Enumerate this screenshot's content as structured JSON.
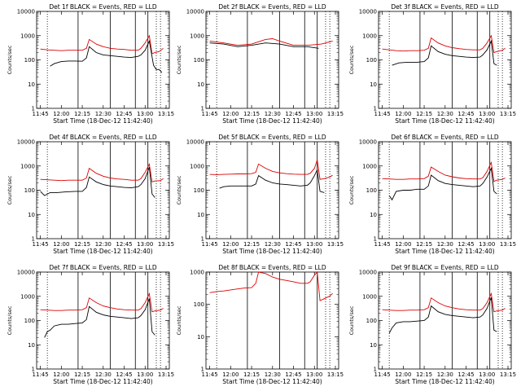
{
  "chart_data": [
    {
      "type": "line",
      "title": "Det 1f BLACK = Events, RED = LLD",
      "xlabel": "Start Time (18-Dec-12 11:42:40)",
      "ylabel": "Counts/sec",
      "ylog": true,
      "ylim": [
        1,
        10000
      ],
      "yticks": [
        "1",
        "10",
        "100",
        "1000",
        "10000"
      ],
      "xticks": [
        "11:45",
        "12:00",
        "12:15",
        "12:30",
        "12:45",
        "13:00",
        "13:15"
      ],
      "xlim_min": [
        -2.67,
        92.33
      ],
      "series": [
        {
          "name": "Events",
          "color": "#000000",
          "x": [
            7,
            10,
            15,
            20,
            25,
            30,
            33,
            35,
            40,
            45,
            50,
            55,
            60,
            65,
            70,
            72,
            75,
            78,
            81,
            83,
            85,
            87
          ],
          "y": [
            55,
            70,
            85,
            90,
            90,
            88,
            120,
            350,
            200,
            160,
            150,
            140,
            130,
            125,
            140,
            160,
            250,
            600,
            60,
            40,
            40,
            30
          ]
        },
        {
          "name": "LLD",
          "color": "#dd0000",
          "x": [
            0,
            5,
            10,
            15,
            20,
            25,
            30,
            33,
            35,
            40,
            45,
            50,
            55,
            60,
            65,
            70,
            72,
            75,
            78,
            80,
            82,
            85,
            88
          ],
          "y": [
            280,
            260,
            250,
            240,
            250,
            250,
            250,
            300,
            700,
            450,
            350,
            300,
            280,
            270,
            250,
            250,
            300,
            500,
            1000,
            180,
            200,
            220,
            300
          ]
        }
      ]
    },
    {
      "type": "line",
      "title": "Det 2f BLACK = Events, RED = LLD",
      "xlabel": "Start Time (18-Dec-12 11:42:40)",
      "ylabel": "Counts/sec",
      "ylog": true,
      "ylim": [
        1,
        10000
      ],
      "yticks": [
        "1",
        "10",
        "100",
        "1000",
        "10000"
      ],
      "xticks": [
        "11:45",
        "12:00",
        "12:15",
        "12:30",
        "12:45",
        "13:00",
        "13:15"
      ],
      "xlim_min": [
        -2.67,
        92.33
      ],
      "series": [
        {
          "name": "Events",
          "color": "#000000",
          "x": [
            0,
            10,
            20,
            30,
            40,
            50,
            60,
            70,
            78
          ],
          "y": [
            500,
            450,
            350,
            400,
            500,
            450,
            350,
            350,
            300
          ]
        },
        {
          "name": "LLD",
          "color": "#dd0000",
          "x": [
            0,
            10,
            20,
            30,
            40,
            45,
            50,
            60,
            70,
            80,
            88
          ],
          "y": [
            600,
            500,
            400,
            450,
            700,
            750,
            600,
            400,
            400,
            450,
            600
          ]
        }
      ]
    },
    {
      "type": "line",
      "title": "Det 3f BLACK = Events, RED = LLD",
      "xlabel": "Start Time (18-Dec-12 11:42:40)",
      "ylabel": "Counts/sec",
      "ylog": true,
      "ylim": [
        1,
        10000
      ],
      "yticks": [
        "1",
        "10",
        "100",
        "1000",
        "10000"
      ],
      "xticks": [
        "11:45",
        "12:00",
        "12:15",
        "12:30",
        "12:45",
        "13:00",
        "13:15"
      ],
      "xlim_min": [
        -2.67,
        92.33
      ],
      "series": [
        {
          "name": "Events",
          "color": "#000000",
          "x": [
            7,
            12,
            18,
            25,
            30,
            33,
            35,
            40,
            45,
            50,
            55,
            60,
            65,
            70,
            72,
            75,
            78,
            80,
            82
          ],
          "y": [
            60,
            75,
            80,
            80,
            85,
            120,
            380,
            220,
            170,
            150,
            140,
            130,
            125,
            130,
            160,
            260,
            600,
            70,
            60
          ]
        },
        {
          "name": "LLD",
          "color": "#dd0000",
          "x": [
            0,
            5,
            10,
            15,
            20,
            25,
            30,
            33,
            35,
            40,
            45,
            50,
            55,
            60,
            65,
            70,
            72,
            75,
            78,
            80,
            82,
            86,
            88
          ],
          "y": [
            280,
            260,
            240,
            230,
            240,
            240,
            250,
            300,
            800,
            500,
            380,
            320,
            290,
            270,
            260,
            260,
            300,
            500,
            1000,
            200,
            220,
            250,
            300
          ]
        }
      ]
    },
    {
      "type": "line",
      "title": "Det 4f BLACK = Events, RED = LLD",
      "xlabel": "Start Time (18-Dec-12 11:42:40)",
      "ylabel": "Counts/sec",
      "ylog": true,
      "ylim": [
        1,
        10000
      ],
      "yticks": [
        "1",
        "10",
        "100",
        "1000",
        "10000"
      ],
      "xticks": [
        "11:45",
        "12:00",
        "12:15",
        "12:30",
        "12:45",
        "13:00",
        "13:15"
      ],
      "xlim_min": [
        -2.67,
        92.33
      ],
      "series": [
        {
          "name": "Events",
          "color": "#000000",
          "x": [
            0,
            3,
            7,
            12,
            18,
            25,
            30,
            33,
            35,
            40,
            45,
            50,
            55,
            60,
            65,
            70,
            72,
            75,
            78,
            80,
            82
          ],
          "y": [
            90,
            60,
            80,
            80,
            85,
            90,
            90,
            130,
            350,
            220,
            170,
            150,
            140,
            130,
            125,
            140,
            170,
            300,
            900,
            70,
            50
          ]
        },
        {
          "name": "LLD",
          "color": "#dd0000",
          "x": [
            0,
            5,
            10,
            15,
            20,
            25,
            30,
            33,
            35,
            40,
            45,
            50,
            55,
            60,
            65,
            70,
            72,
            75,
            78,
            80,
            82,
            86,
            88
          ],
          "y": [
            280,
            270,
            260,
            250,
            260,
            260,
            260,
            320,
            800,
            500,
            380,
            320,
            290,
            280,
            260,
            260,
            300,
            550,
            1200,
            220,
            240,
            250,
            300
          ]
        }
      ]
    },
    {
      "type": "line",
      "title": "Det 5f BLACK = Events, RED = LLD",
      "xlabel": "Start Time (18-Dec-12 11:42:40)",
      "ylabel": "Counts/sec",
      "ylog": true,
      "ylim": [
        1,
        10000
      ],
      "yticks": [
        "1",
        "10",
        "100",
        "1000",
        "10000"
      ],
      "xticks": [
        "11:45",
        "12:00",
        "12:15",
        "12:30",
        "12:45",
        "13:00",
        "13:15"
      ],
      "xlim_min": [
        -2.67,
        92.33
      ],
      "series": [
        {
          "name": "Events",
          "color": "#000000",
          "x": [
            7,
            10,
            15,
            20,
            25,
            30,
            33,
            35,
            40,
            45,
            50,
            55,
            60,
            65,
            70,
            72,
            75,
            77,
            79,
            82
          ],
          "y": [
            120,
            140,
            150,
            150,
            150,
            150,
            180,
            400,
            260,
            200,
            180,
            170,
            160,
            150,
            160,
            200,
            400,
            700,
            90,
            80
          ]
        },
        {
          "name": "LLD",
          "color": "#dd0000",
          "x": [
            0,
            5,
            10,
            15,
            20,
            25,
            30,
            33,
            35,
            40,
            45,
            50,
            55,
            60,
            65,
            70,
            72,
            75,
            77,
            79,
            82,
            86,
            88
          ],
          "y": [
            450,
            440,
            450,
            460,
            470,
            470,
            480,
            550,
            1200,
            800,
            600,
            520,
            480,
            460,
            450,
            450,
            500,
            800,
            1800,
            280,
            300,
            350,
            420
          ]
        }
      ]
    },
    {
      "type": "line",
      "title": "Det 6f BLACK = Events, RED = LLD",
      "xlabel": "Start Time (18-Dec-12 11:42:40)",
      "ylabel": "Counts/sec",
      "ylog": true,
      "ylim": [
        1,
        10000
      ],
      "yticks": [
        "1",
        "10",
        "100",
        "1000",
        "10000"
      ],
      "xticks": [
        "11:45",
        "12:00",
        "12:15",
        "12:30",
        "12:45",
        "13:00",
        "13:15"
      ],
      "xlim_min": [
        -2.67,
        92.33
      ],
      "series": [
        {
          "name": "Events",
          "color": "#000000",
          "x": [
            5,
            7,
            10,
            15,
            20,
            25,
            30,
            33,
            35,
            40,
            45,
            50,
            55,
            60,
            65,
            70,
            72,
            75,
            78,
            80,
            82
          ],
          "y": [
            60,
            40,
            90,
            100,
            100,
            110,
            110,
            150,
            420,
            250,
            190,
            170,
            160,
            150,
            140,
            150,
            190,
            350,
            800,
            90,
            70
          ]
        },
        {
          "name": "LLD",
          "color": "#dd0000",
          "x": [
            0,
            5,
            10,
            15,
            20,
            25,
            30,
            33,
            35,
            40,
            45,
            50,
            55,
            60,
            65,
            70,
            72,
            75,
            78,
            80,
            82,
            86,
            88
          ],
          "y": [
            300,
            290,
            280,
            280,
            290,
            290,
            300,
            380,
            900,
            600,
            420,
            360,
            320,
            300,
            290,
            290,
            330,
            600,
            1400,
            230,
            260,
            280,
            320
          ]
        }
      ]
    },
    {
      "type": "line",
      "title": "Det 7f BLACK = Events, RED = LLD",
      "xlabel": "Start Time (18-Dec-12 11:42:40)",
      "ylabel": "Counts/sec",
      "ylog": true,
      "ylim": [
        1,
        10000
      ],
      "yticks": [
        "1",
        "10",
        "100",
        "1000",
        "10000"
      ],
      "xticks": [
        "11:45",
        "12:00",
        "12:15",
        "12:30",
        "12:45",
        "13:00",
        "13:15"
      ],
      "xlim_min": [
        -2.67,
        92.33
      ],
      "series": [
        {
          "name": "Events",
          "color": "#000000",
          "x": [
            3,
            5,
            7,
            10,
            15,
            20,
            25,
            30,
            33,
            35,
            40,
            45,
            50,
            55,
            60,
            65,
            70,
            72,
            75,
            78,
            80,
            82
          ],
          "y": [
            20,
            35,
            40,
            60,
            70,
            70,
            75,
            80,
            110,
            380,
            220,
            170,
            150,
            140,
            130,
            120,
            130,
            160,
            280,
            800,
            35,
            25
          ]
        },
        {
          "name": "LLD",
          "color": "#dd0000",
          "x": [
            0,
            5,
            10,
            15,
            20,
            25,
            30,
            33,
            35,
            40,
            45,
            50,
            55,
            60,
            65,
            70,
            72,
            75,
            78,
            80,
            82,
            86,
            88
          ],
          "y": [
            280,
            270,
            260,
            260,
            270,
            270,
            280,
            340,
            850,
            550,
            400,
            340,
            300,
            280,
            270,
            270,
            310,
            550,
            1300,
            230,
            250,
            270,
            320
          ]
        }
      ]
    },
    {
      "type": "line",
      "title": "Det 8f BLACK = Events, RED = LLD",
      "xlabel": "Start Time (18-Dec-12 11:42:40)",
      "ylabel": "Counts/sec",
      "ylog": true,
      "ylim": [
        1,
        1000
      ],
      "yticks": [
        "1",
        "10",
        "100",
        "1000"
      ],
      "xticks": [
        "11:45",
        "12:00",
        "12:15",
        "12:30",
        "12:45",
        "13:00",
        "13:15"
      ],
      "xlim_min": [
        -2.67,
        92.33
      ],
      "series": [
        {
          "name": "LLD",
          "color": "#dd0000",
          "x": [
            0,
            5,
            10,
            15,
            20,
            25,
            30,
            33,
            35,
            40,
            45,
            50,
            55,
            60,
            65,
            70,
            72,
            75,
            77,
            79,
            82,
            86,
            88
          ],
          "y": [
            230,
            250,
            260,
            280,
            300,
            320,
            330,
            450,
            1200,
            900,
            700,
            600,
            550,
            500,
            450,
            450,
            500,
            800,
            1500,
            130,
            150,
            180,
            220
          ]
        }
      ]
    },
    {
      "type": "line",
      "title": "Det 9f BLACK = Events, RED = LLD",
      "xlabel": "Start Time (18-Dec-12 11:42:40)",
      "ylabel": "Counts/sec",
      "ylog": true,
      "ylim": [
        1,
        10000
      ],
      "yticks": [
        "1",
        "10",
        "100",
        "1000",
        "10000"
      ],
      "xticks": [
        "11:45",
        "12:00",
        "12:15",
        "12:30",
        "12:45",
        "13:00",
        "13:15"
      ],
      "xlim_min": [
        -2.67,
        92.33
      ],
      "series": [
        {
          "name": "Events",
          "color": "#000000",
          "x": [
            5,
            7,
            10,
            15,
            20,
            25,
            30,
            33,
            35,
            40,
            45,
            50,
            55,
            60,
            65,
            70,
            72,
            75,
            78,
            80,
            82
          ],
          "y": [
            30,
            50,
            80,
            90,
            90,
            95,
            100,
            140,
            400,
            230,
            180,
            160,
            150,
            140,
            130,
            140,
            170,
            320,
            900,
            40,
            35
          ]
        },
        {
          "name": "LLD",
          "color": "#dd0000",
          "x": [
            0,
            5,
            10,
            15,
            20,
            25,
            30,
            33,
            35,
            40,
            45,
            50,
            55,
            60,
            65,
            70,
            72,
            75,
            78,
            80,
            82,
            86,
            88
          ],
          "y": [
            280,
            270,
            260,
            260,
            270,
            270,
            280,
            340,
            850,
            550,
            400,
            340,
            300,
            280,
            270,
            270,
            310,
            550,
            1300,
            230,
            250,
            270,
            320
          ]
        }
      ]
    }
  ]
}
